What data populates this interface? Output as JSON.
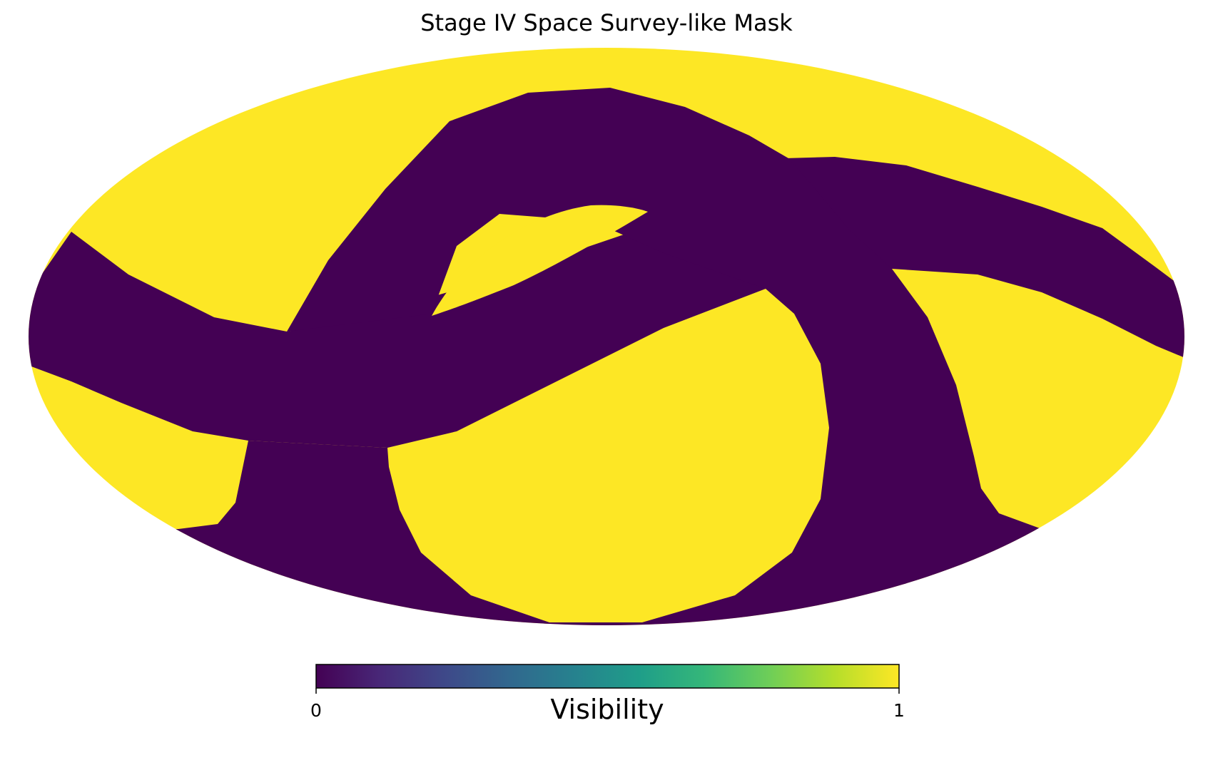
{
  "chart_data": {
    "type": "heatmap",
    "projection": "mollweide",
    "title": "Stage IV Space Survey-like Mask",
    "colormap": "viridis",
    "colors": {
      "masked": "#440154",
      "visible": "#fde725"
    },
    "values": [
      0,
      1
    ],
    "colorbar": {
      "label": "Visibility",
      "min": 0,
      "max": 1,
      "ticks": [
        "0",
        "1"
      ],
      "orientation": "horizontal",
      "placement": "bottom",
      "stops": [
        "#440154",
        "#482878",
        "#3e4989",
        "#31688e",
        "#26828e",
        "#1f9e89",
        "#35b779",
        "#6ece58",
        "#b5de2b",
        "#fde725"
      ]
    },
    "grid": false
  }
}
